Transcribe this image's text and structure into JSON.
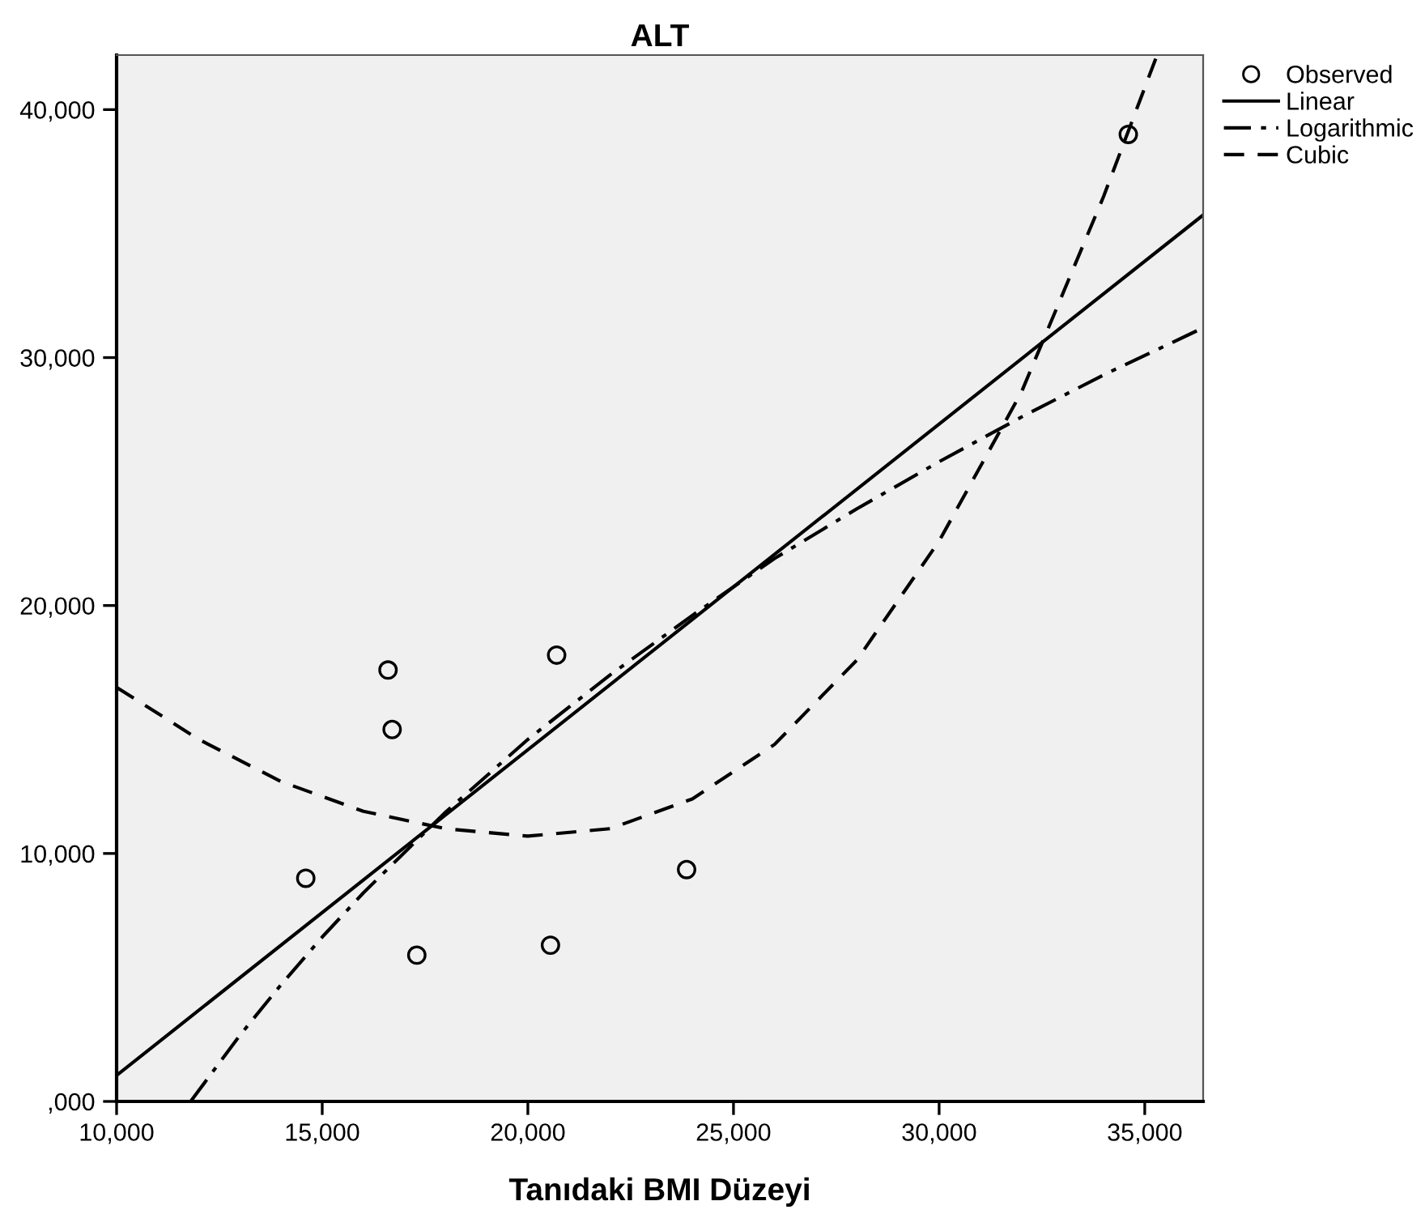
{
  "chart_data": {
    "type": "line",
    "title": "ALT",
    "xlabel": "Tanıdaki BMI Düzeyi",
    "xlim": [
      10000,
      36420
    ],
    "ylim": [
      0,
      42200
    ],
    "xticks": [
      {
        "value": 10000,
        "label": "10,000"
      },
      {
        "value": 15000,
        "label": "15,000"
      },
      {
        "value": 20000,
        "label": "20,000"
      },
      {
        "value": 25000,
        "label": "25,000"
      },
      {
        "value": 30000,
        "label": "30,000"
      },
      {
        "value": 35000,
        "label": "35,000"
      }
    ],
    "yticks": [
      {
        "value": 0,
        "label": ",000"
      },
      {
        "value": 10000,
        "label": "10,000"
      },
      {
        "value": 20000,
        "label": "20,000"
      },
      {
        "value": 30000,
        "label": "30,000"
      },
      {
        "value": 40000,
        "label": "40,000"
      }
    ],
    "grid": false,
    "legend": "top right",
    "series": [
      {
        "name": "Observed",
        "type": "scatter",
        "marker": "circle",
        "color": "#000000",
        "x": [
          14600,
          16600,
          16700,
          17300,
          20700,
          20550,
          23860,
          34600
        ],
        "values": [
          9000,
          17400,
          15000,
          5900,
          18000,
          6300,
          9350,
          39000
        ]
      },
      {
        "name": "Linear",
        "line_style": "solid",
        "color": "#000000",
        "x": [
          10000,
          36420
        ],
        "values": [
          1050,
          35750
        ]
      },
      {
        "name": "Logarithmic",
        "line_style": "dashdot",
        "color": "#000000",
        "x": [
          11800,
          13000,
          14000,
          15000,
          16000,
          18000,
          20000,
          22000,
          24000,
          26000,
          28000,
          30000,
          32000,
          34000,
          36420
        ],
        "values": [
          0,
          2670,
          4710,
          6630,
          8410,
          11670,
          14600,
          17200,
          19600,
          21900,
          23900,
          25800,
          27600,
          29300,
          31200
        ]
      },
      {
        "name": "Cubic",
        "line_style": "dashed",
        "color": "#000000",
        "x": [
          10000,
          12000,
          14000,
          16000,
          18000,
          20000,
          22000,
          24000,
          26000,
          28000,
          30000,
          32000,
          34000,
          35300
        ],
        "values": [
          16700,
          14600,
          12900,
          11700,
          11000,
          10700,
          11000,
          12200,
          14400,
          17800,
          22600,
          28600,
          36500,
          42200
        ]
      }
    ]
  }
}
